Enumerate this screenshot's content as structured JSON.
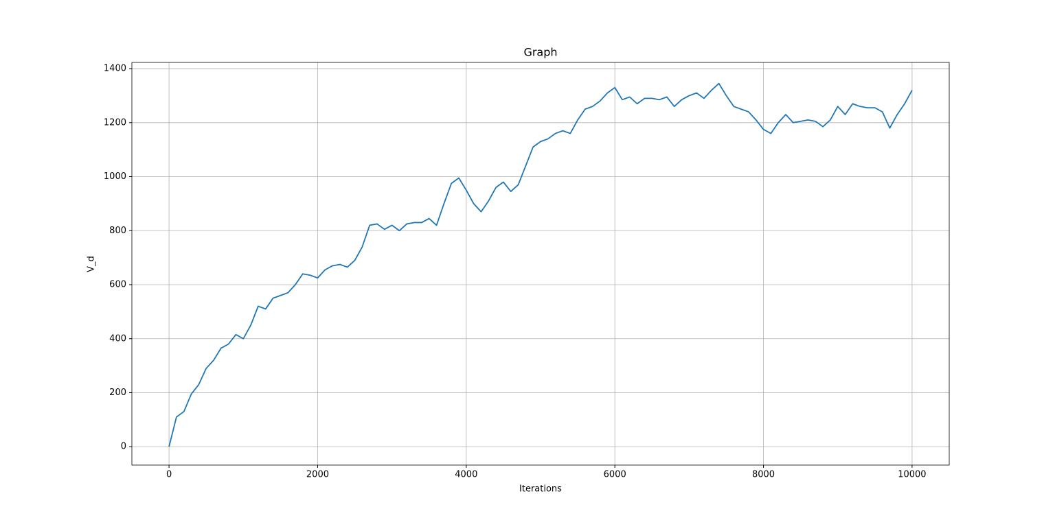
{
  "chart_data": {
    "type": "line",
    "title": "Graph",
    "x_label": "Iterations",
    "y_label": "V_d",
    "x": [
      0,
      100,
      200,
      300,
      400,
      500,
      600,
      700,
      800,
      900,
      1000,
      1100,
      1200,
      1300,
      1400,
      1500,
      1600,
      1700,
      1800,
      1900,
      2000,
      2100,
      2200,
      2300,
      2400,
      2500,
      2600,
      2700,
      2800,
      2900,
      3000,
      3100,
      3200,
      3300,
      3400,
      3500,
      3600,
      3700,
      3800,
      3900,
      4000,
      4100,
      4200,
      4300,
      4400,
      4500,
      4600,
      4700,
      4800,
      4900,
      5000,
      5100,
      5200,
      5300,
      5400,
      5500,
      5600,
      5700,
      5800,
      5900,
      6000,
      6100,
      6200,
      6300,
      6400,
      6500,
      6600,
      6700,
      6800,
      6900,
      7000,
      7100,
      7200,
      7300,
      7400,
      7500,
      7600,
      7700,
      7800,
      7900,
      8000,
      8100,
      8200,
      8300,
      8400,
      8500,
      8600,
      8700,
      8800,
      8900,
      9000,
      9100,
      9200,
      9300,
      9400,
      9500,
      9600,
      9700,
      9800,
      9900,
      10000
    ],
    "series": [
      {
        "name": "V_d",
        "color": "#1f77b4",
        "values": [
          0,
          110,
          130,
          195,
          230,
          290,
          320,
          365,
          380,
          415,
          400,
          450,
          520,
          510,
          550,
          560,
          570,
          600,
          640,
          635,
          625,
          655,
          670,
          675,
          665,
          690,
          740,
          820,
          825,
          805,
          820,
          800,
          825,
          830,
          830,
          845,
          820,
          900,
          975,
          995,
          950,
          900,
          870,
          910,
          960,
          980,
          945,
          970,
          1040,
          1110,
          1130,
          1140,
          1160,
          1170,
          1160,
          1210,
          1250,
          1260,
          1280,
          1310,
          1330,
          1285,
          1295,
          1270,
          1290,
          1290,
          1285,
          1295,
          1260,
          1285,
          1300,
          1310,
          1290,
          1320,
          1345,
          1300,
          1260,
          1250,
          1240,
          1210,
          1175,
          1160,
          1200,
          1230,
          1200,
          1205,
          1210,
          1205,
          1185,
          1210,
          1260,
          1230,
          1270,
          1260,
          1255,
          1255,
          1240,
          1180,
          1230,
          1270,
          1320
        ]
      }
    ],
    "xlim": [
      -500,
      10500
    ],
    "ylim": [
      -68,
      1423
    ],
    "xticks": [
      0,
      2000,
      4000,
      6000,
      8000,
      10000
    ],
    "yticks": [
      0,
      200,
      400,
      600,
      800,
      1000,
      1200,
      1400
    ],
    "grid": true
  }
}
